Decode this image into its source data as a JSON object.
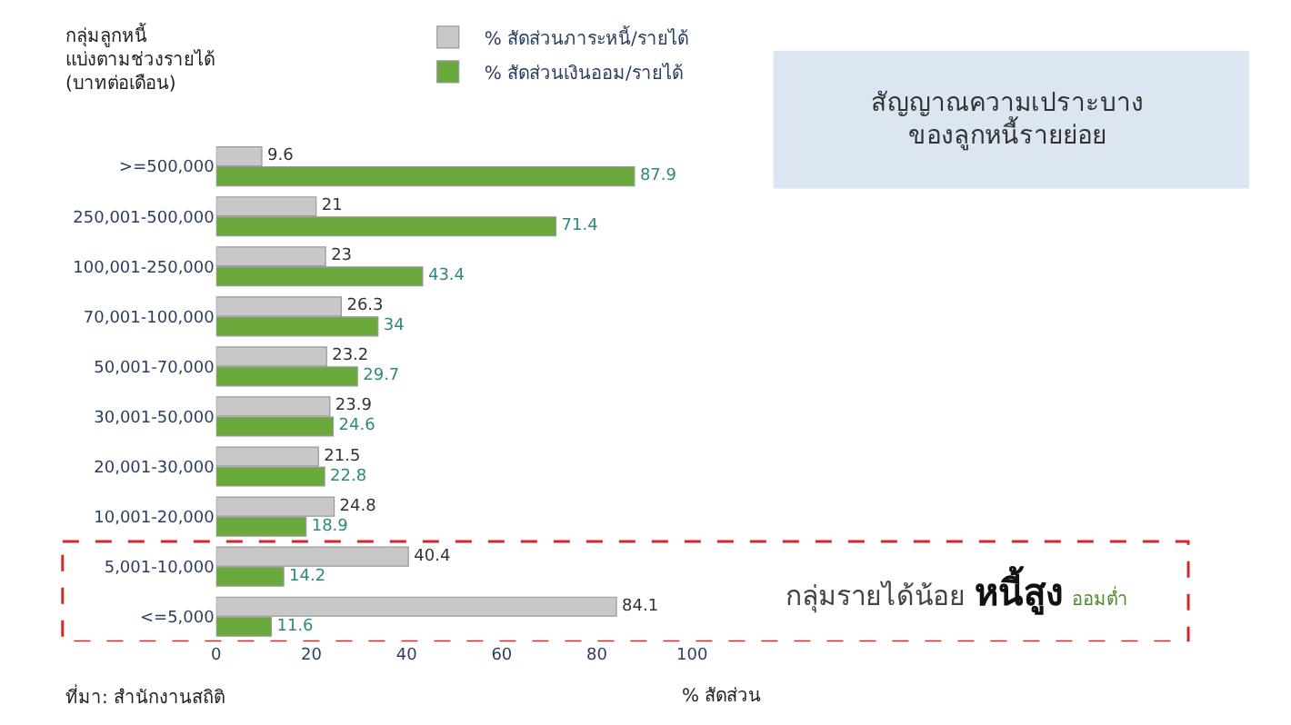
{
  "chart_data": {
    "type": "bar",
    "orientation": "horizontal",
    "title": "สัญญาณความเปราะบาง\nของลูกหนี้รายย่อย",
    "ylabel": "กลุ่มลูกหนี้\nแบ่งตามช่วงรายได้\n(บาทต่อเดือน)",
    "xlabel": "% สัดส่วน",
    "categories": [
      ">=500,000",
      "250,001-500,000",
      "100,001-250,000",
      "70,001-100,000",
      "50,001-70,000",
      "30,001-50,000",
      "20,001-30,000",
      "10,001-20,000",
      "5,001-10,000",
      "<=5,000"
    ],
    "series": [
      {
        "name": "% สัดส่วนภาระหนี้/รายได้",
        "color": "#c8c8c8",
        "values": [
          9.6,
          21,
          23,
          26.3,
          23.2,
          23.9,
          21.5,
          24.8,
          40.4,
          84.1
        ]
      },
      {
        "name": "% สัดส่วนเงินออม/รายได้",
        "color": "#6aaa3c",
        "values": [
          87.9,
          71.4,
          43.4,
          34,
          29.7,
          24.6,
          22.8,
          18.9,
          14.2,
          11.6
        ]
      }
    ],
    "data_labels": true,
    "xlim": [
      0,
      100
    ],
    "xticks": [
      0,
      20,
      40,
      60,
      80,
      100
    ],
    "legend": "top",
    "annotations": [
      "ที่มา: สำนักงานสถิติ",
      "กลุ่มรายได้น้อย หนี้สูง ออมต่ำ"
    ]
  }
}
